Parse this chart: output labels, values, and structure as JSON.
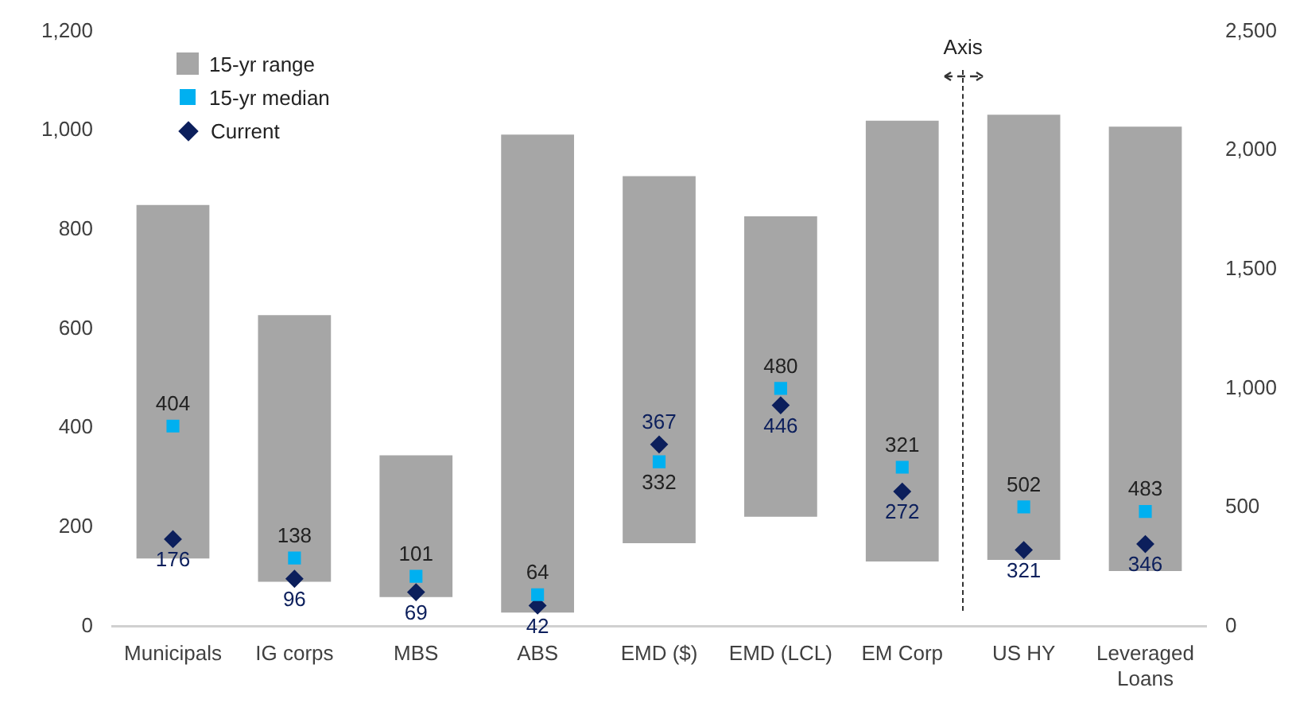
{
  "chart_data": {
    "type": "bar",
    "categories": [
      "Municipals",
      "IG corps",
      "MBS",
      "ABS",
      "EMD ($)",
      "EMD (LCL)",
      "EM Corp",
      "US HY",
      "Leveraged Loans"
    ],
    "ylim": [
      0,
      1200
    ],
    "yticks": [
      0,
      {
        "value": 200,
        "label": "200"
      },
      {
        "value": 400,
        "label": "400"
      },
      {
        "value": 600,
        "label": "600"
      },
      {
        "value": 800,
        "label": "800"
      },
      {
        "value": 1000,
        "label": "1,000"
      },
      {
        "value": 1200,
        "label": "1,200"
      }
    ],
    "y2lim": [
      0,
      2500
    ],
    "y2ticks": [
      0,
      500,
      {
        "value": 1000,
        "label": "1,000"
      },
      {
        "value": 1500,
        "label": "1,500"
      },
      {
        "value": 2000,
        "label": "2,000"
      },
      {
        "value": 2500,
        "label": "2,500"
      }
    ],
    "grid": false,
    "legend": "top left",
    "annotations": [
      "Axis"
    ],
    "series": [
      {
        "name": "15-yr range",
        "color": "#a6a6a6",
        "base": [
          137,
          90,
          59,
          28,
          168,
          221,
          131,
          null,
          null
        ],
        "values": [
          713,
          538,
          286,
          964,
          740,
          606,
          889,
          null,
          null
        ]
      },
      {
        "axis": "y2",
        "color": "#a6a6a6",
        "base": [
          null,
          null,
          null,
          null,
          null,
          null,
          null,
          279,
          233
        ],
        "values": [
          null,
          null,
          null,
          null,
          null,
          null,
          null,
          1871,
          1867
        ]
      },
      {
        "name": "15-yr median",
        "type": "scatter",
        "marker": "square",
        "color": "#00b0f0",
        "values": [
          404,
          138,
          101,
          64,
          332,
          480,
          321,
          null,
          null
        ],
        "value_labels": [
          "404",
          "138",
          "101",
          "64",
          "332",
          "480",
          "321",
          null,
          null
        ]
      },
      {
        "type": "scatter",
        "marker": "square",
        "axis": "y2",
        "color": "#00b0f0",
        "values": [
          null,
          null,
          null,
          null,
          null,
          null,
          null,
          502,
          483
        ],
        "value_labels": [
          null,
          null,
          null,
          null,
          null,
          null,
          null,
          "502",
          "483"
        ]
      },
      {
        "name": "Current",
        "type": "scatter",
        "marker": "diamond",
        "color": "#0c1f5c",
        "values": [
          176,
          96,
          69,
          42,
          367,
          446,
          272,
          null,
          null
        ],
        "value_labels": [
          "176",
          "96",
          "69",
          "42",
          "367",
          "446",
          "272",
          null,
          null
        ]
      },
      {
        "type": "scatter",
        "marker": "diamond",
        "axis": "y2",
        "color": "#0c1f5c",
        "values": [
          null,
          null,
          null,
          null,
          null,
          null,
          null,
          321,
          346
        ],
        "value_labels": [
          null,
          null,
          null,
          null,
          null,
          null,
          null,
          "321",
          "346"
        ]
      }
    ]
  }
}
